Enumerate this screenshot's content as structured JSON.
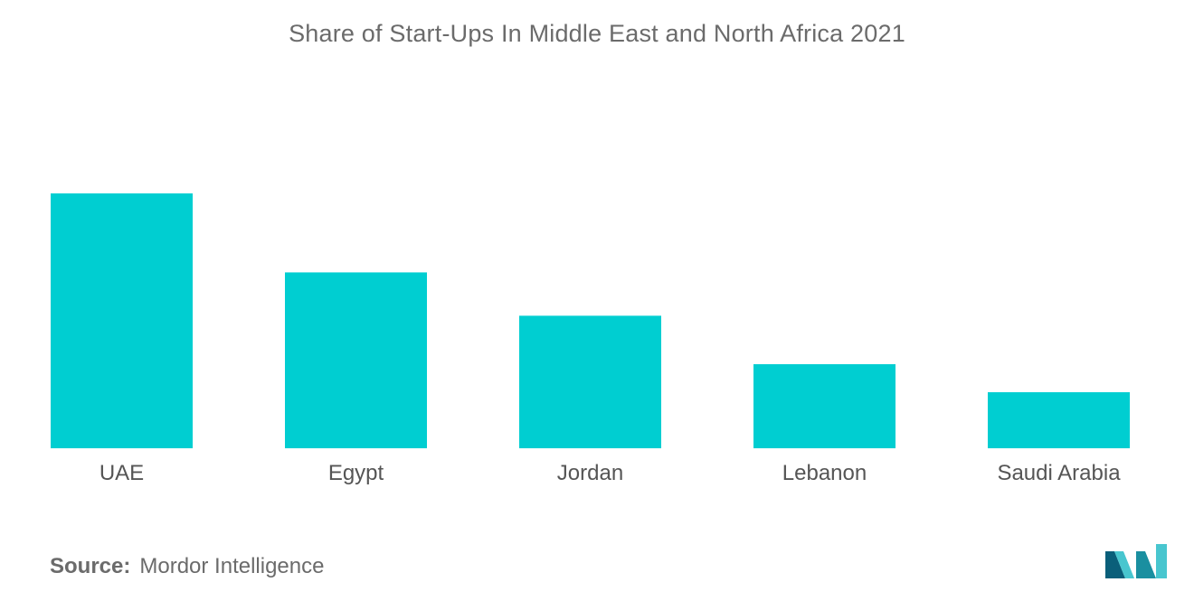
{
  "chart_data": {
    "type": "bar",
    "title": "Share of Start-Ups In Middle East and North Africa 2021",
    "categories": [
      "UAE",
      "Egypt",
      "Jordan",
      "Lebanon",
      "Saudi Arabia"
    ],
    "values": [
      100,
      69,
      52,
      33,
      22
    ],
    "xlabel": "",
    "ylabel": "",
    "ylim": [
      0,
      100
    ],
    "grid": false,
    "legend": "none",
    "bar_color": "#00CED1"
  },
  "source": {
    "label": "Source:",
    "text": "Mordor Intelligence"
  },
  "logo": {
    "icon": "mordor-intelligence-logo-icon",
    "colors": [
      "#1a8fa0",
      "#48c6cf",
      "#0a5f7a"
    ]
  }
}
